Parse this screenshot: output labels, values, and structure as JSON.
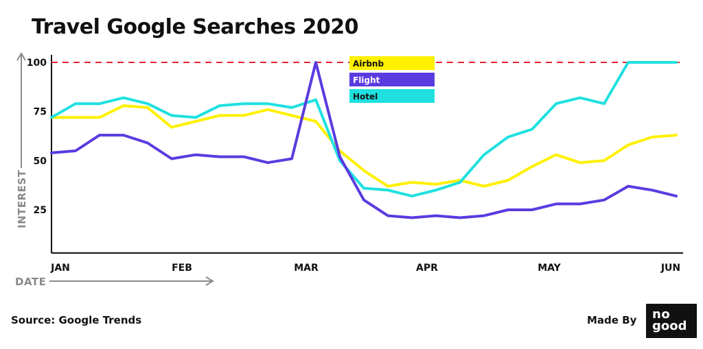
{
  "title": "Travel Google Searches 2020",
  "source": "Source: Google Trends",
  "made_by": "Made By",
  "logo": {
    "line1": "no",
    "line2": "good"
  },
  "colors": {
    "airbnb": "#FFF000",
    "flight": "#5B3BE0",
    "hotel": "#1FE0E0",
    "reference": "#E0222E",
    "axis": "#111111",
    "axis_label": "#8a8a8a"
  },
  "chart_data": {
    "type": "line",
    "xlabel": "DATE",
    "ylabel": "INTEREST",
    "x_ticks": [
      "JAN",
      "FEB",
      "MAR",
      "APR",
      "MAY",
      "JUN"
    ],
    "y_ticks": [
      25,
      50,
      75,
      100
    ],
    "ylim": [
      0,
      100
    ],
    "reference_line": 100,
    "grid": false,
    "legend_position": "top-center",
    "x": [
      0,
      0.2,
      0.5,
      0.8,
      1.1,
      1.3,
      1.55,
      1.85,
      2.05,
      2.3,
      2.55,
      2.8,
      3.05,
      3.3,
      3.55,
      3.85,
      4.1,
      4.3,
      4.55,
      4.8,
      5.1,
      5.4,
      5.7,
      6.0,
      6.25,
      6.5,
      6.8,
      7.0,
      7.3,
      7.6,
      7.9,
      8.1
    ],
    "series": [
      {
        "name": "Airbnb",
        "values": [
          72,
          72,
          72,
          78,
          77,
          67,
          70,
          73,
          73,
          76,
          73,
          70,
          55,
          45,
          37,
          39,
          38,
          40,
          37,
          40,
          47,
          53,
          49,
          50,
          58,
          62,
          63,
          null,
          null,
          null,
          null,
          null
        ]
      },
      {
        "name": "Flight",
        "values": [
          54,
          55,
          63,
          63,
          59,
          51,
          53,
          52,
          52,
          49,
          51,
          100,
          52,
          30,
          22,
          21,
          22,
          21,
          22,
          25,
          25,
          28,
          28,
          30,
          37,
          35,
          32,
          null,
          null,
          null,
          null,
          null
        ]
      },
      {
        "name": "Hotel",
        "values": [
          72,
          79,
          79,
          82,
          79,
          73,
          72,
          78,
          79,
          79,
          77,
          81,
          50,
          36,
          35,
          32,
          35,
          39,
          53,
          62,
          66,
          79,
          82,
          79,
          100,
          100,
          100,
          null,
          null,
          null,
          null,
          null
        ]
      }
    ]
  }
}
